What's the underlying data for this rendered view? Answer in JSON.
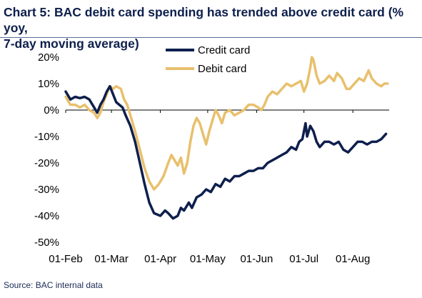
{
  "title_line1": "Chart 5: BAC debit card spending has trended above credit card (% yoy,",
  "title_line2": "7-day moving average)",
  "source": "Source: BAC internal  data",
  "chart_data": {
    "type": "line",
    "title": "Chart 5: BAC debit card spending has trended above credit card (% yoy, 7-day moving average)",
    "xlabel": "",
    "ylabel": "",
    "ylim": [
      -50,
      20
    ],
    "yticks": [
      20,
      10,
      0,
      -10,
      -20,
      -30,
      -40,
      -50
    ],
    "ytick_labels": [
      "20%",
      "10%",
      "0%",
      "-10%",
      "-20%",
      "-30%",
      "-40%",
      "-50%"
    ],
    "xlim": [
      "2020-02-01",
      "2020-08-24"
    ],
    "xticks": [
      "2020-02-01",
      "2020-03-01",
      "2020-04-01",
      "2020-05-01",
      "2020-06-01",
      "2020-07-01",
      "2020-08-01"
    ],
    "xtick_labels": [
      "01-Feb",
      "01-Mar",
      "01-Apr",
      "01-May",
      "01-Jun",
      "01-Jul",
      "01-Aug"
    ],
    "grid": false,
    "legend": "top",
    "series": [
      {
        "name": "Credit card",
        "color": "#0e1f4d",
        "points": [
          [
            "2020-02-01",
            7
          ],
          [
            "2020-02-04",
            4
          ],
          [
            "2020-02-07",
            5
          ],
          [
            "2020-02-10",
            4.5
          ],
          [
            "2020-02-13",
            5
          ],
          [
            "2020-02-16",
            4
          ],
          [
            "2020-02-19",
            1
          ],
          [
            "2020-02-21",
            -1
          ],
          [
            "2020-02-23",
            2
          ],
          [
            "2020-02-25",
            4
          ],
          [
            "2020-02-27",
            7
          ],
          [
            "2020-02-29",
            9
          ],
          [
            "2020-03-02",
            6
          ],
          [
            "2020-03-04",
            3
          ],
          [
            "2020-03-06",
            2
          ],
          [
            "2020-03-08",
            1
          ],
          [
            "2020-03-10",
            -2
          ],
          [
            "2020-03-13",
            -6
          ],
          [
            "2020-03-16",
            -12
          ],
          [
            "2020-03-19",
            -20
          ],
          [
            "2020-03-22",
            -28
          ],
          [
            "2020-03-25",
            -35
          ],
          [
            "2020-03-28",
            -39
          ],
          [
            "2020-04-01",
            -40
          ],
          [
            "2020-04-04",
            -38
          ],
          [
            "2020-04-06",
            -39
          ],
          [
            "2020-04-09",
            -41
          ],
          [
            "2020-04-12",
            -40
          ],
          [
            "2020-04-14",
            -37
          ],
          [
            "2020-04-16",
            -38
          ],
          [
            "2020-04-19",
            -35
          ],
          [
            "2020-04-21",
            -37
          ],
          [
            "2020-04-24",
            -33
          ],
          [
            "2020-04-27",
            -32
          ],
          [
            "2020-04-30",
            -30
          ],
          [
            "2020-05-03",
            -31
          ],
          [
            "2020-05-06",
            -28
          ],
          [
            "2020-05-09",
            -29
          ],
          [
            "2020-05-12",
            -26
          ],
          [
            "2020-05-15",
            -27
          ],
          [
            "2020-05-18",
            -25
          ],
          [
            "2020-05-21",
            -25
          ],
          [
            "2020-05-24",
            -24
          ],
          [
            "2020-05-27",
            -23
          ],
          [
            "2020-05-30",
            -23
          ],
          [
            "2020-06-02",
            -22
          ],
          [
            "2020-06-05",
            -22
          ],
          [
            "2020-06-08",
            -20
          ],
          [
            "2020-06-11",
            -19
          ],
          [
            "2020-06-14",
            -18
          ],
          [
            "2020-06-17",
            -17
          ],
          [
            "2020-06-20",
            -16
          ],
          [
            "2020-06-23",
            -14
          ],
          [
            "2020-06-26",
            -15
          ],
          [
            "2020-06-28",
            -12
          ],
          [
            "2020-06-30",
            -11
          ],
          [
            "2020-07-02",
            -5
          ],
          [
            "2020-07-03",
            -10
          ],
          [
            "2020-07-05",
            -6
          ],
          [
            "2020-07-07",
            -8
          ],
          [
            "2020-07-09",
            -12
          ],
          [
            "2020-07-11",
            -14
          ],
          [
            "2020-07-14",
            -12
          ],
          [
            "2020-07-17",
            -12
          ],
          [
            "2020-07-20",
            -13
          ],
          [
            "2020-07-23",
            -12
          ],
          [
            "2020-07-26",
            -15
          ],
          [
            "2020-07-29",
            -16
          ],
          [
            "2020-08-01",
            -14
          ],
          [
            "2020-08-04",
            -12
          ],
          [
            "2020-08-07",
            -12
          ],
          [
            "2020-08-10",
            -13
          ],
          [
            "2020-08-13",
            -12
          ],
          [
            "2020-08-16",
            -12
          ],
          [
            "2020-08-19",
            -11
          ],
          [
            "2020-08-22",
            -9
          ]
        ]
      },
      {
        "name": "Debit card",
        "color": "#e8c06d",
        "points": [
          [
            "2020-02-01",
            5
          ],
          [
            "2020-02-04",
            2
          ],
          [
            "2020-02-07",
            2
          ],
          [
            "2020-02-10",
            1
          ],
          [
            "2020-02-13",
            2
          ],
          [
            "2020-02-16",
            0
          ],
          [
            "2020-02-19",
            -1
          ],
          [
            "2020-02-21",
            -3
          ],
          [
            "2020-02-23",
            -1
          ],
          [
            "2020-02-25",
            3
          ],
          [
            "2020-02-27",
            6
          ],
          [
            "2020-02-29",
            9
          ],
          [
            "2020-03-02",
            8
          ],
          [
            "2020-03-04",
            9
          ],
          [
            "2020-03-07",
            8
          ],
          [
            "2020-03-09",
            4
          ],
          [
            "2020-03-11",
            2
          ],
          [
            "2020-03-13",
            -2
          ],
          [
            "2020-03-16",
            -8
          ],
          [
            "2020-03-19",
            -15
          ],
          [
            "2020-03-22",
            -22
          ],
          [
            "2020-03-25",
            -27
          ],
          [
            "2020-03-28",
            -30
          ],
          [
            "2020-03-31",
            -28
          ],
          [
            "2020-04-03",
            -25
          ],
          [
            "2020-04-06",
            -20
          ],
          [
            "2020-04-08",
            -17
          ],
          [
            "2020-04-10",
            -19
          ],
          [
            "2020-04-12",
            -21
          ],
          [
            "2020-04-14",
            -18
          ],
          [
            "2020-04-16",
            -24
          ],
          [
            "2020-04-18",
            -20
          ],
          [
            "2020-04-20",
            -12
          ],
          [
            "2020-04-22",
            -6
          ],
          [
            "2020-04-24",
            -3
          ],
          [
            "2020-04-26",
            -5
          ],
          [
            "2020-04-28",
            -9
          ],
          [
            "2020-04-30",
            -13
          ],
          [
            "2020-05-02",
            -8
          ],
          [
            "2020-05-04",
            -4
          ],
          [
            "2020-05-06",
            0
          ],
          [
            "2020-05-08",
            -2
          ],
          [
            "2020-05-10",
            -5
          ],
          [
            "2020-05-12",
            -1
          ],
          [
            "2020-05-15",
            0
          ],
          [
            "2020-05-18",
            -2
          ],
          [
            "2020-05-21",
            -1
          ],
          [
            "2020-05-24",
            0
          ],
          [
            "2020-05-27",
            2
          ],
          [
            "2020-05-30",
            2
          ],
          [
            "2020-06-02",
            1
          ],
          [
            "2020-06-04",
            0
          ],
          [
            "2020-06-06",
            2
          ],
          [
            "2020-06-08",
            5
          ],
          [
            "2020-06-11",
            7
          ],
          [
            "2020-06-14",
            6
          ],
          [
            "2020-06-17",
            8
          ],
          [
            "2020-06-20",
            10
          ],
          [
            "2020-06-23",
            9
          ],
          [
            "2020-06-26",
            10
          ],
          [
            "2020-06-29",
            11
          ],
          [
            "2020-07-01",
            7
          ],
          [
            "2020-07-03",
            10
          ],
          [
            "2020-07-05",
            16
          ],
          [
            "2020-07-06",
            20
          ],
          [
            "2020-07-07",
            19
          ],
          [
            "2020-07-09",
            13
          ],
          [
            "2020-07-11",
            10
          ],
          [
            "2020-07-14",
            11
          ],
          [
            "2020-07-17",
            13
          ],
          [
            "2020-07-20",
            11
          ],
          [
            "2020-07-22",
            14
          ],
          [
            "2020-07-25",
            12
          ],
          [
            "2020-07-28",
            8
          ],
          [
            "2020-07-30",
            8
          ],
          [
            "2020-08-02",
            10
          ],
          [
            "2020-08-05",
            12
          ],
          [
            "2020-08-08",
            11
          ],
          [
            "2020-08-11",
            15
          ],
          [
            "2020-08-13",
            12
          ],
          [
            "2020-08-16",
            10
          ],
          [
            "2020-08-19",
            9
          ],
          [
            "2020-08-21",
            10
          ],
          [
            "2020-08-23",
            10
          ]
        ]
      }
    ]
  }
}
